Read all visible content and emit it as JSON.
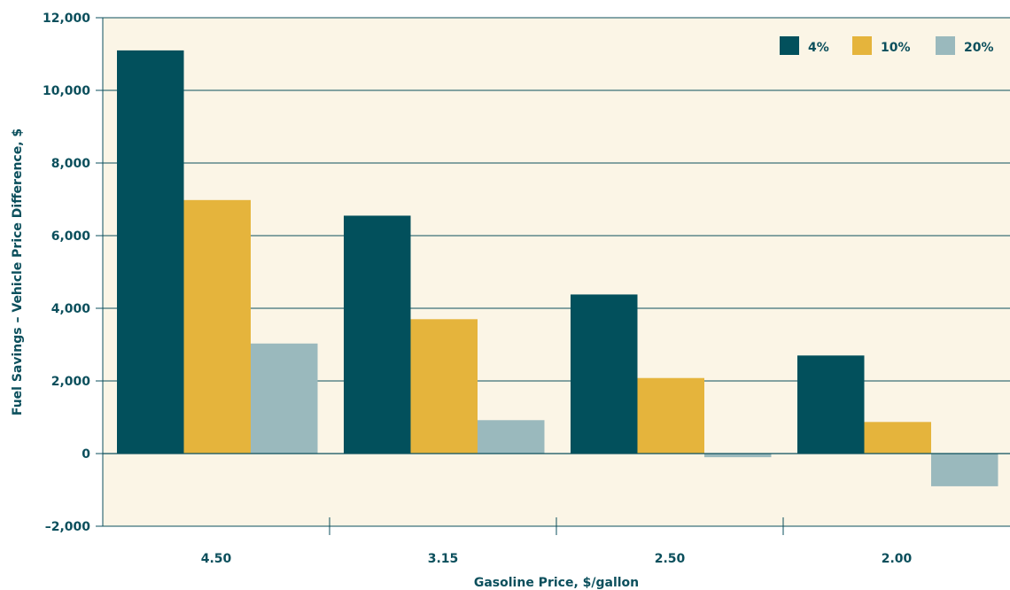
{
  "chart_data": {
    "type": "bar",
    "title": "",
    "xlabel": "Gasoline Price, $/gallon",
    "ylabel": "Fuel Savings – Vehicle Price Difference, $",
    "categories": [
      "4.50",
      "3.15",
      "2.50",
      "2.00"
    ],
    "series": [
      {
        "name": "4%",
        "color": "#02505c",
        "values": [
          11100,
          6550,
          4380,
          2700
        ]
      },
      {
        "name": "10%",
        "color": "#e5b43c",
        "values": [
          6980,
          3700,
          2080,
          870
        ]
      },
      {
        "name": "20%",
        "color": "#9ab9bd",
        "values": [
          3030,
          920,
          -100,
          -900
        ]
      }
    ],
    "ylim": [
      -2000,
      12000
    ],
    "yticks": [
      -2000,
      0,
      2000,
      4000,
      6000,
      8000,
      10000,
      12000
    ],
    "ytick_labels": [
      "–2,000",
      "0",
      "2,000",
      "4,000",
      "6,000",
      "8,000",
      "10,000",
      "12,000"
    ],
    "grid": true,
    "legend_position": "top-right",
    "plot_background": "#fbf5e6",
    "axis_color": "#0b4f5c"
  }
}
